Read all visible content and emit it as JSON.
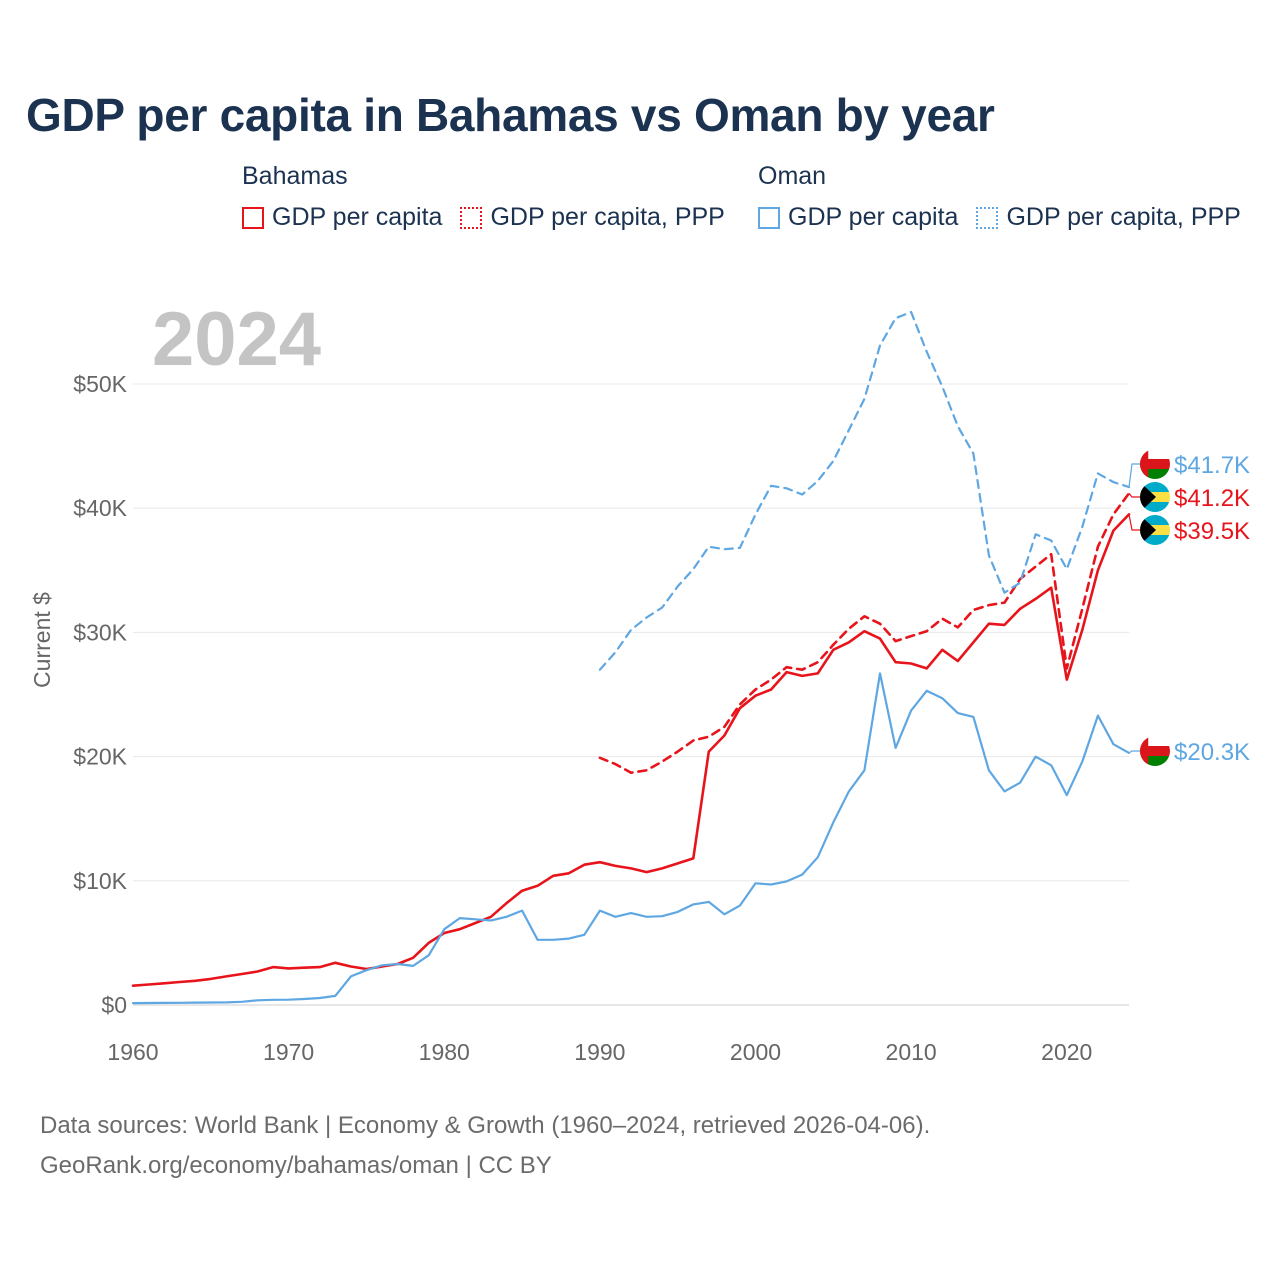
{
  "title": "GDP per capita in Bahamas vs Oman by year",
  "year_label": "2024",
  "legend": {
    "groups": [
      {
        "name": "Bahamas",
        "color": "#e8141b",
        "items": [
          {
            "label": "GDP per capita",
            "style": "solid"
          },
          {
            "label": "GDP per capita, PPP",
            "style": "dotted"
          }
        ]
      },
      {
        "name": "Oman",
        "color": "#5ea7e2",
        "items": [
          {
            "label": "GDP per capita",
            "style": "solid"
          },
          {
            "label": "GDP per capita, PPP",
            "style": "dotted"
          }
        ]
      }
    ]
  },
  "footer": {
    "line1": "Data sources: World Bank | Economy & Growth (1960–2024, retrieved 2026-04-06).",
    "line2": "GeoRank.org/economy/bahamas/oman | CC BY"
  },
  "chart_data": {
    "type": "line",
    "title": "GDP per capita in Bahamas vs Oman by year",
    "ylabel": "Current $",
    "xlabel": "",
    "xlim": [
      1960,
      2024
    ],
    "ylim": [
      0,
      55000
    ],
    "x_ticks": [
      1960,
      1970,
      1980,
      1990,
      2000,
      2010,
      2020
    ],
    "x_tick_labels": [
      "1960",
      "1970",
      "1980",
      "1990",
      "2000",
      "2010",
      "2020"
    ],
    "y_ticks": [
      0,
      10000,
      20000,
      30000,
      40000,
      50000
    ],
    "y_tick_labels": [
      "$0",
      "$10K",
      "$20K",
      "$30K",
      "$40K",
      "$50K"
    ],
    "grid": true,
    "series": [
      {
        "name": "Bahamas GDP per capita",
        "country": "Bahamas",
        "color": "#e8141b",
        "dash": "solid",
        "start": 1960,
        "values": [
          1550,
          1650,
          1750,
          1850,
          1950,
          2100,
          2300,
          2500,
          2700,
          3050,
          2950,
          3000,
          3050,
          3400,
          3100,
          2900,
          3100,
          3300,
          3800,
          5000,
          5800,
          6100,
          6600,
          7100,
          8200,
          9200,
          9600,
          10400,
          10600,
          11300,
          11500,
          11200,
          11000,
          10700,
          11000,
          11400,
          11800,
          20400,
          21700,
          23900,
          24900,
          25400,
          26800,
          26500,
          26700,
          28600,
          29200,
          30100,
          29500,
          27600,
          27500,
          27100,
          28600,
          27700,
          29200,
          30700,
          30600,
          31900,
          32700,
          33600,
          26200,
          30200,
          35000,
          38200,
          39500
        ],
        "end_label": "$39.5K"
      },
      {
        "name": "Bahamas GDP per capita, PPP",
        "country": "Bahamas",
        "color": "#e8141b",
        "dash": "dashed",
        "start": 1990,
        "values": [
          19900,
          19400,
          18700,
          18900,
          19600,
          20400,
          21300,
          21600,
          22400,
          24200,
          25400,
          26200,
          27200,
          27000,
          27600,
          29000,
          30300,
          31300,
          30700,
          29300,
          29700,
          30100,
          31100,
          30400,
          31800,
          32200,
          32400,
          34300,
          35300,
          36300,
          27100,
          31900,
          36900,
          39500,
          41200
        ],
        "end_label": "$41.2K"
      },
      {
        "name": "Oman GDP per capita",
        "country": "Oman",
        "color": "#5ea7e2",
        "dash": "solid",
        "start": 1960,
        "values": [
          150,
          160,
          170,
          180,
          190,
          200,
          210,
          260,
          380,
          420,
          430,
          480,
          560,
          730,
          2300,
          2800,
          3200,
          3300,
          3150,
          4000,
          6100,
          7000,
          6900,
          6800,
          7100,
          7600,
          5250,
          5250,
          5350,
          5650,
          7600,
          7100,
          7400,
          7100,
          7150,
          7500,
          8100,
          8300,
          7300,
          8000,
          9800,
          9700,
          9950,
          10500,
          11900,
          14700,
          17200,
          18900,
          26700,
          20700,
          23700,
          25300,
          24700,
          23500,
          23200,
          18900,
          17200,
          17900,
          20000,
          19300,
          16900,
          19600,
          23300,
          21000,
          20300
        ],
        "end_label": "$20.3K"
      },
      {
        "name": "Oman GDP per capita, PPP",
        "country": "Oman",
        "color": "#5ea7e2",
        "dash": "dashed",
        "start": 1990,
        "values": [
          27000,
          28400,
          30200,
          31200,
          32000,
          33700,
          35100,
          36900,
          36700,
          36800,
          39500,
          41800,
          41600,
          41100,
          42200,
          43800,
          46300,
          48800,
          53100,
          55300,
          55800,
          52600,
          49800,
          46600,
          44400,
          36200,
          33200,
          34000,
          37900,
          37400,
          35100,
          38500,
          42800,
          42100,
          41700
        ],
        "end_label": "$41.7K"
      }
    ]
  }
}
